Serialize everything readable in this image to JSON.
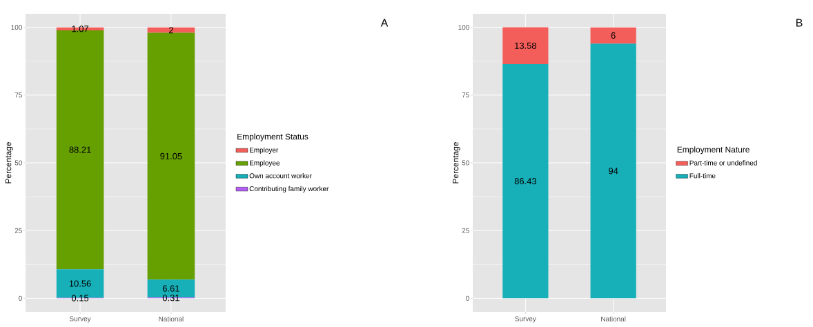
{
  "chart_data": [
    {
      "type": "bar",
      "stacked": true,
      "categories": [
        "Survey",
        "National"
      ],
      "ylabel": "Percentage",
      "legend_title": "Employment Status",
      "annotations": [
        "A"
      ],
      "ylim": [
        -5,
        105
      ],
      "yticks": [
        0,
        25,
        50,
        75,
        100
      ],
      "grid": true,
      "legend": "right",
      "data_labels": true,
      "series": [
        {
          "name": "Contributing family worker",
          "color": "#b35cf6",
          "values": [
            0.15,
            0.31
          ]
        },
        {
          "name": "Own account worker",
          "color": "#18b0b8",
          "values": [
            10.56,
            6.61
          ]
        },
        {
          "name": "Employee",
          "color": "#669f00",
          "values": [
            88.21,
            91.05
          ]
        },
        {
          "name": "Employer",
          "color": "#f35e5a",
          "values": [
            1.07,
            2
          ]
        }
      ]
    },
    {
      "type": "bar",
      "stacked": true,
      "categories": [
        "Survey",
        "National"
      ],
      "ylabel": "Percentage",
      "legend_title": "Employment Nature",
      "annotations": [
        "B"
      ],
      "ylim": [
        -5,
        105
      ],
      "yticks": [
        0,
        25,
        50,
        75,
        100
      ],
      "grid": true,
      "legend": "right",
      "data_labels": true,
      "series": [
        {
          "name": "Full-time",
          "color": "#18b0b8",
          "values": [
            86.43,
            94
          ]
        },
        {
          "name": "Part-time or undefined",
          "color": "#f35e5a",
          "values": [
            13.58,
            6
          ]
        }
      ]
    }
  ]
}
